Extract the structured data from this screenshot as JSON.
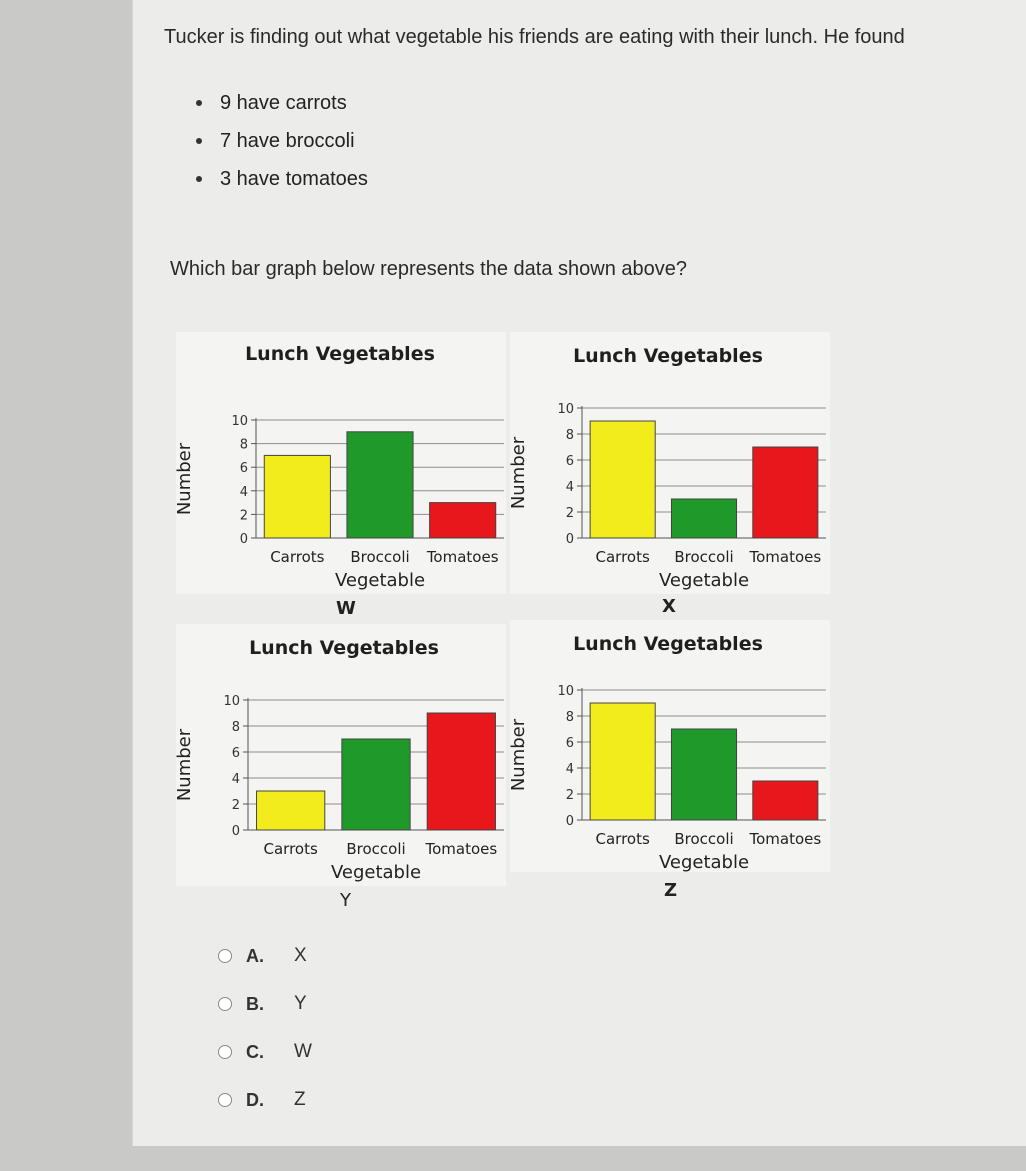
{
  "question": {
    "intro": "Tucker is finding out what vegetable his friends are eating with their lunch. He found",
    "facts": [
      "9 have carrots",
      "7 have broccoli",
      "3 have tomatoes"
    ],
    "prompt": "Which bar graph below represents the data shown above?"
  },
  "colors": {
    "carrots": "#f2ec1c",
    "broccoli": "#1f9a2a",
    "tomatoes": "#e8171b"
  },
  "chart_data": [
    {
      "type": "bar",
      "label": "W",
      "title": "Lunch Vegetables",
      "categories": [
        "Carrots",
        "Broccoli",
        "Tomatoes"
      ],
      "values": [
        7,
        9,
        3
      ],
      "xlabel": "Vegetable",
      "ylabel": "Number",
      "ylim": [
        0,
        10
      ],
      "yticks": [
        0,
        2,
        4,
        6,
        8,
        10
      ],
      "grid": true
    },
    {
      "type": "bar",
      "label": "X",
      "title": "Lunch Vegetables",
      "categories": [
        "Carrots",
        "Broccoli",
        "Tomatoes"
      ],
      "values": [
        9,
        3,
        7
      ],
      "xlabel": "Vegetable",
      "ylabel": "Number",
      "ylim": [
        0,
        10
      ],
      "yticks": [
        0,
        2,
        4,
        6,
        8,
        10
      ],
      "grid": true
    },
    {
      "type": "bar",
      "label": "Y",
      "title": "Lunch Vegetables",
      "categories": [
        "Carrots",
        "Broccoli",
        "Tomatoes"
      ],
      "values": [
        3,
        7,
        9
      ],
      "xlabel": "Vegetable",
      "ylabel": "Number",
      "ylim": [
        0,
        10
      ],
      "yticks": [
        0,
        2,
        4,
        6,
        8,
        10
      ],
      "grid": true
    },
    {
      "type": "bar",
      "label": "Z",
      "title": "Lunch Vegetables",
      "categories": [
        "Carrots",
        "Broccoli",
        "Tomatoes"
      ],
      "values": [
        9,
        7,
        3
      ],
      "xlabel": "Vegetable",
      "ylabel": "Number",
      "ylim": [
        0,
        10
      ],
      "yticks": [
        0,
        2,
        4,
        6,
        8,
        10
      ],
      "grid": true
    }
  ],
  "choices": [
    {
      "letter": "A.",
      "text": "X"
    },
    {
      "letter": "B.",
      "text": "Y"
    },
    {
      "letter": "C.",
      "text": "W"
    },
    {
      "letter": "D.",
      "text": "Z"
    }
  ]
}
